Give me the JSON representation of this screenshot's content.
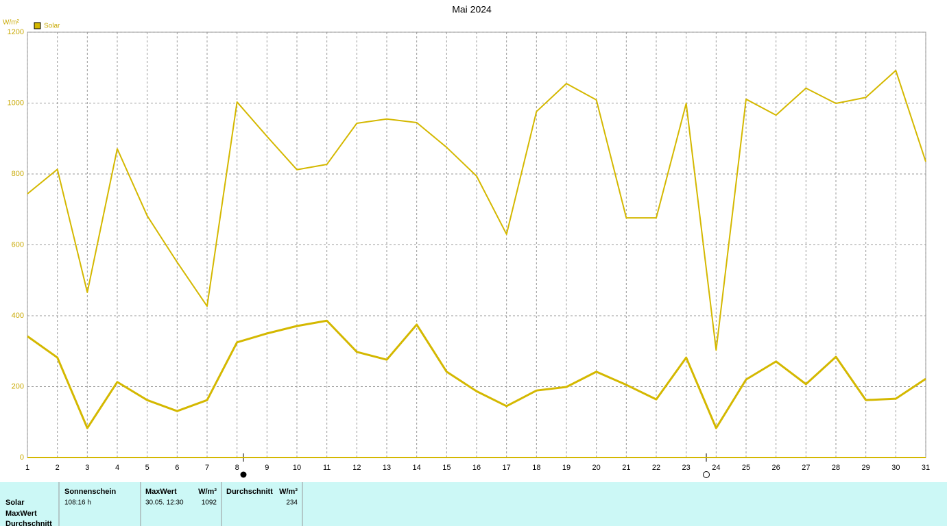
{
  "chart_data": {
    "type": "line",
    "title": "Mai 2024",
    "y_label": "W/m²",
    "legend": "Solar",
    "x": [
      1,
      2,
      3,
      4,
      5,
      6,
      7,
      8,
      9,
      10,
      11,
      12,
      13,
      14,
      15,
      16,
      17,
      18,
      19,
      20,
      21,
      22,
      23,
      24,
      25,
      26,
      27,
      28,
      29,
      30,
      31
    ],
    "xlim": [
      1,
      31
    ],
    "xticks": [
      1,
      2,
      3,
      4,
      5,
      6,
      7,
      8,
      9,
      10,
      11,
      12,
      13,
      14,
      15,
      16,
      17,
      18,
      19,
      20,
      21,
      22,
      23,
      24,
      25,
      26,
      27,
      28,
      29,
      30,
      31
    ],
    "ylim": [
      0,
      1200
    ],
    "yticks": [
      0,
      200,
      400,
      600,
      800,
      1000,
      1200
    ],
    "grid": true,
    "series": [
      {
        "name": "Solar",
        "color": "#d4b800",
        "width": 2,
        "values": [
          744,
          813,
          466,
          871,
          682,
          551,
          427,
          1003,
          906,
          812,
          827,
          943,
          955,
          945,
          875,
          794,
          630,
          976,
          1055,
          1009,
          676,
          676,
          999,
          303,
          1011,
          966,
          1042,
          999,
          1016,
          1092,
          835
        ]
      },
      {
        "color": "#d4b800",
        "width": 3,
        "values": [
          342,
          282,
          83,
          213,
          162,
          131,
          162,
          325,
          350,
          371,
          386,
          298,
          276,
          375,
          242,
          187,
          145,
          189,
          199,
          242,
          205,
          164,
          282,
          83,
          220,
          271,
          207,
          284,
          162,
          166,
          222
        ]
      }
    ]
  },
  "table": {
    "row_labels": [
      "Solar",
      "MaxWert",
      "Durchschnitt"
    ],
    "headers": [
      "Sonnenschein",
      "MaxWert",
      "W/m²",
      "Durchschnitt",
      "W/m²"
    ],
    "row": [
      "108:16 h",
      "30.05. 12:30",
      1092,
      234
    ]
  }
}
